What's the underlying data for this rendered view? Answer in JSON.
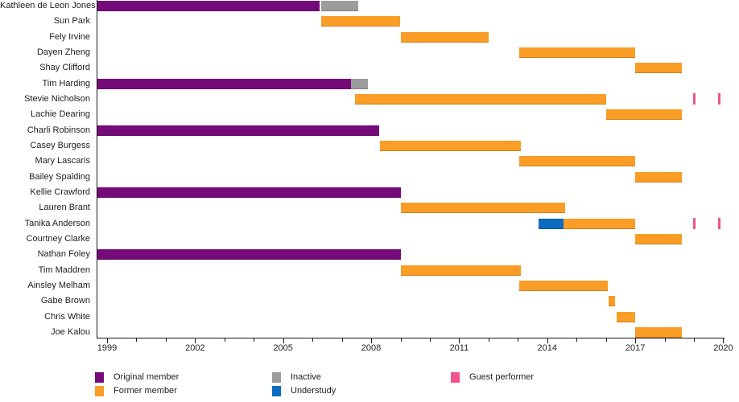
{
  "colors": {
    "original": "#740B78",
    "former": "#F99D27",
    "inactive": "#9C9C9C",
    "understudy": "#0B6BC0",
    "guest": "#F0538D",
    "axis": "#1a1a1a",
    "text": "#202122"
  },
  "legend": {
    "items": [
      {
        "label": "Original member",
        "key": "original",
        "col": 0,
        "row": 0
      },
      {
        "label": "Former member",
        "key": "former",
        "col": 0,
        "row": 1
      },
      {
        "label": "Inactive",
        "key": "inactive",
        "col": 1,
        "row": 0
      },
      {
        "label": "Understudy",
        "key": "understudy",
        "col": 1,
        "row": 1
      },
      {
        "label": "Guest performer",
        "key": "guest",
        "col": 2,
        "row": 0
      }
    ]
  },
  "chart_data": {
    "type": "gantt-timeline",
    "title": "",
    "xlabel": "",
    "ylabel": "",
    "axis": {
      "year_min": 1998.67,
      "year_max": 2020.1,
      "tick_years": [
        1999,
        2000,
        2001,
        2002,
        2003,
        2004,
        2005,
        2006,
        2007,
        2008,
        2009,
        2010,
        2011,
        2012,
        2013,
        2014,
        2015,
        2016,
        2017,
        2018,
        2019,
        2020
      ],
      "labeled_years": [
        1999,
        2002,
        2005,
        2008,
        2011,
        2014,
        2017,
        2020
      ],
      "grid": false,
      "legend_position": "bottom"
    },
    "categories": [
      "Kathleen de Leon Jones",
      "Sun Park",
      "Fely Irvine",
      "Dayen Zheng",
      "Shay Clifford",
      "Tim Harding",
      "Stevie Nicholson",
      "Lachie Dearing",
      "Charli Robinson",
      "Casey Burgess",
      "Mary Lascaris",
      "Bailey Spalding",
      "Kellie Crawford",
      "Lauren Brant",
      "Tanika Anderson",
      "Courtney Clarke",
      "Nathan Foley",
      "Tim Maddren",
      "Ainsley Melham",
      "Gabe Brown",
      "Chris White",
      "Joe Kalou"
    ],
    "rows": [
      {
        "name": "Kathleen de Leon Jones",
        "segments": [
          {
            "status": "original",
            "start": 1998.67,
            "end": 2006.25
          },
          {
            "status": "inactive",
            "start": 2006.3,
            "end": 2007.55
          }
        ]
      },
      {
        "name": "Sun Park",
        "segments": [
          {
            "status": "former",
            "start": 2006.3,
            "end": 2009.0
          }
        ]
      },
      {
        "name": "Fely Irvine",
        "segments": [
          {
            "status": "former",
            "start": 2009.0,
            "end": 2012.0
          }
        ]
      },
      {
        "name": "Dayen Zheng",
        "segments": [
          {
            "status": "former",
            "start": 2013.05,
            "end": 2017.0
          }
        ]
      },
      {
        "name": "Shay Clifford",
        "segments": [
          {
            "status": "former",
            "start": 2017.0,
            "end": 2018.6
          }
        ]
      },
      {
        "name": "Tim Harding",
        "segments": [
          {
            "status": "original",
            "start": 1998.67,
            "end": 2007.3
          },
          {
            "status": "inactive",
            "start": 2007.3,
            "end": 2007.9
          }
        ]
      },
      {
        "name": "Stevie Nicholson",
        "segments": [
          {
            "status": "former",
            "start": 2007.45,
            "end": 2016.0
          },
          {
            "status": "guest",
            "at": 2019.0
          },
          {
            "status": "guest",
            "at": 2019.85
          }
        ]
      },
      {
        "name": "Lachie Dearing",
        "segments": [
          {
            "status": "former",
            "start": 2016.0,
            "end": 2018.6
          }
        ]
      },
      {
        "name": "Charli Robinson",
        "segments": [
          {
            "status": "original",
            "start": 1998.67,
            "end": 2008.27
          }
        ]
      },
      {
        "name": "Casey Burgess",
        "segments": [
          {
            "status": "former",
            "start": 2008.3,
            "end": 2013.1
          }
        ]
      },
      {
        "name": "Mary Lascaris",
        "segments": [
          {
            "status": "former",
            "start": 2013.05,
            "end": 2017.0
          }
        ]
      },
      {
        "name": "Bailey Spalding",
        "segments": [
          {
            "status": "former",
            "start": 2017.0,
            "end": 2018.6
          }
        ]
      },
      {
        "name": "Kellie Crawford",
        "segments": [
          {
            "status": "original",
            "start": 1998.67,
            "end": 2009.0
          }
        ]
      },
      {
        "name": "Lauren Brant",
        "segments": [
          {
            "status": "former",
            "start": 2009.0,
            "end": 2014.6
          }
        ]
      },
      {
        "name": "Tanika Anderson",
        "segments": [
          {
            "status": "understudy",
            "start": 2013.7,
            "end": 2014.55
          },
          {
            "status": "former",
            "start": 2014.55,
            "end": 2017.0
          },
          {
            "status": "guest",
            "at": 2019.0
          },
          {
            "status": "guest",
            "at": 2019.85
          }
        ]
      },
      {
        "name": "Courtney Clarke",
        "segments": [
          {
            "status": "former",
            "start": 2017.0,
            "end": 2018.6
          }
        ]
      },
      {
        "name": "Nathan Foley",
        "segments": [
          {
            "status": "original",
            "start": 1998.67,
            "end": 2009.0
          }
        ]
      },
      {
        "name": "Tim Maddren",
        "segments": [
          {
            "status": "former",
            "start": 2009.0,
            "end": 2013.1
          }
        ]
      },
      {
        "name": "Ainsley Melham",
        "segments": [
          {
            "status": "former",
            "start": 2013.05,
            "end": 2016.07
          }
        ]
      },
      {
        "name": "Gabe Brown",
        "segments": [
          {
            "status": "former",
            "start": 2016.1,
            "end": 2016.32
          }
        ]
      },
      {
        "name": "Chris White",
        "segments": [
          {
            "status": "former",
            "start": 2016.37,
            "end": 2017.0
          }
        ]
      },
      {
        "name": "Joe Kalou",
        "segments": [
          {
            "status": "former",
            "start": 2017.0,
            "end": 2018.6
          }
        ]
      }
    ]
  }
}
